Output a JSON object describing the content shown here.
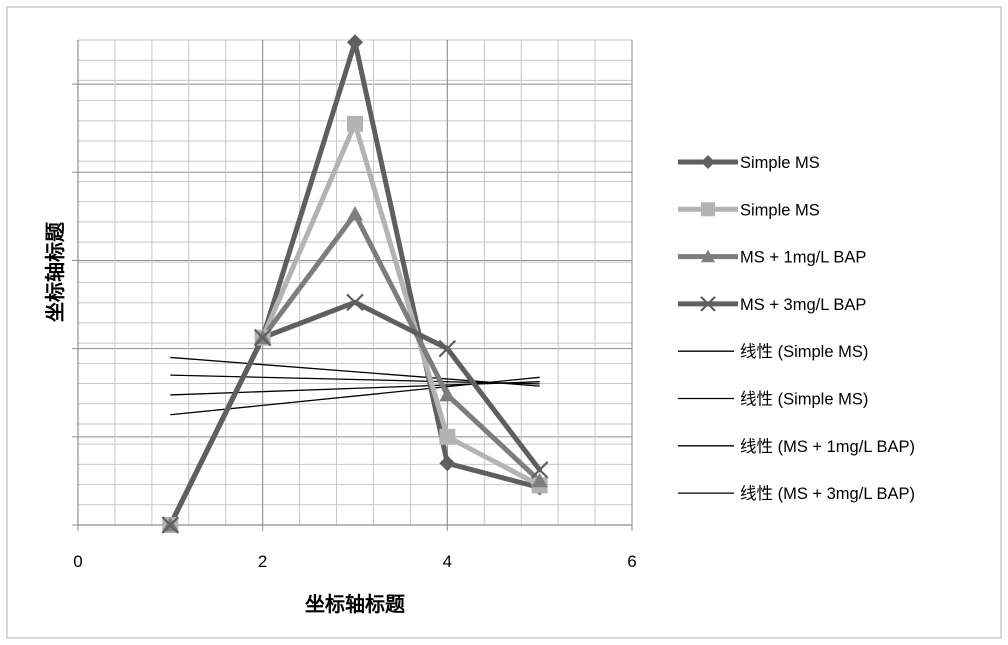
{
  "chart_data": {
    "type": "line",
    "xlabel": "坐标轴标题",
    "ylabel": "坐标轴标题",
    "xlim": [
      0,
      6
    ],
    "ylim": [
      0,
      11
    ],
    "x_ticks": [
      "0",
      "2",
      "4",
      "6"
    ],
    "grid": true,
    "legend_position": "right",
    "x": [
      1,
      2,
      3,
      4,
      5
    ],
    "series": [
      {
        "name": "Simple MS",
        "values": [
          0,
          4.25,
          10.95,
          1.4,
          0.85
        ],
        "color": "#5f5f5f",
        "marker": "diamond"
      },
      {
        "name": "Simple MS",
        "values": [
          0,
          4.25,
          9.1,
          2.0,
          0.9
        ],
        "color": "#b3b3b3",
        "marker": "square"
      },
      {
        "name": "MS + 1mg/L BAP",
        "values": [
          0,
          4.25,
          7.05,
          2.95,
          1.0
        ],
        "color": "#7d7d7d",
        "marker": "triangle"
      },
      {
        "name": "MS + 3mg/L BAP",
        "values": [
          0,
          4.25,
          5.05,
          4.0,
          1.25
        ],
        "color": "#5f5f5f",
        "marker": "x"
      }
    ],
    "trendlines": [
      {
        "name": "线性 (Simple MS)",
        "start": [
          1,
          3.8
        ],
        "end": [
          5,
          3.15
        ]
      },
      {
        "name": "线性 (Simple MS)",
        "start": [
          1,
          3.4
        ],
        "end": [
          5,
          3.2
        ]
      },
      {
        "name": "线性 (MS + 1mg/L BAP)",
        "start": [
          1,
          2.95
        ],
        "end": [
          5,
          3.25
        ]
      },
      {
        "name": "线性 (MS + 3mg/L BAP)",
        "start": [
          1,
          2.5
        ],
        "end": [
          5,
          3.35
        ]
      }
    ]
  }
}
